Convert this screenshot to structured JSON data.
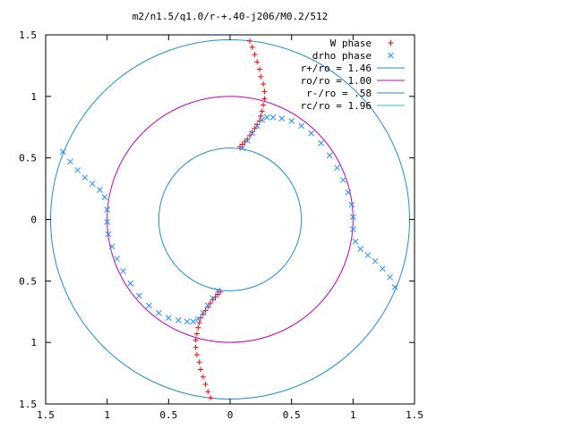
{
  "chart_data": {
    "type": "scatter",
    "title": "m2/n1.5/q1.0/r-+.40-j206/M0.2/512",
    "xlabel": "",
    "ylabel": "",
    "xlim": [
      -1.5,
      1.5
    ],
    "ylim": [
      -1.5,
      1.5
    ],
    "x_ticks": [
      "1.5",
      "1",
      "0.5",
      "0",
      "0.5",
      "1",
      "1.5"
    ],
    "y_ticks": [
      "1.5",
      "1",
      "0.5",
      "0",
      "0.5",
      "1",
      "1.5"
    ],
    "grid": false,
    "legend_position": "top-right",
    "colors": {
      "w_phase": "#ff0000",
      "drho_phase": "#1e90ff",
      "r_plus": "#1f8fcf",
      "ro": "#c000c0",
      "r_minus": "#1f8fcf",
      "rc": "#20c0e0"
    },
    "legend": [
      {
        "label": "W phase",
        "marker": "plus",
        "color": "#ff0000"
      },
      {
        "label": "drho phase",
        "marker": "cross",
        "color": "#1e90ff"
      },
      {
        "label": "r+/ro = 1.46",
        "marker": "line",
        "color": "#1f8fcf"
      },
      {
        "label": "ro/ro = 1.00",
        "marker": "line",
        "color": "#c000c0"
      },
      {
        "label": "r-/ro = .58",
        "marker": "line",
        "color": "#1f8fcf"
      },
      {
        "label": "rc/ro = 1.96",
        "marker": "line",
        "color": "#20c0e0"
      }
    ],
    "circles": [
      {
        "radius": 1.46,
        "color": "#1f8fcf"
      },
      {
        "radius": 1.0,
        "color": "#c000c0"
      },
      {
        "radius": 0.58,
        "color": "#1f8fcf"
      }
    ],
    "series": [
      {
        "name": "W phase",
        "marker": "plus",
        "color": "#ff0000",
        "x": [
          0.16,
          0.18,
          0.2,
          0.22,
          0.24,
          0.25,
          0.27,
          0.28,
          0.28,
          0.27,
          0.26,
          0.25,
          0.24,
          0.22,
          0.2,
          0.18,
          0.16,
          0.14,
          0.12,
          0.1,
          0.08,
          -0.16,
          -0.18,
          -0.2,
          -0.22,
          -0.24,
          -0.25,
          -0.27,
          -0.28,
          -0.28,
          -0.27,
          -0.26,
          -0.25,
          -0.24,
          -0.22,
          -0.2,
          -0.18,
          -0.16,
          -0.14,
          -0.12,
          -0.1,
          -0.08
        ],
        "y": [
          1.45,
          1.4,
          1.34,
          1.28,
          1.22,
          1.16,
          1.1,
          1.04,
          0.98,
          0.93,
          0.88,
          0.84,
          0.8,
          0.77,
          0.74,
          0.71,
          0.68,
          0.65,
          0.63,
          0.61,
          0.59,
          -1.45,
          -1.4,
          -1.34,
          -1.28,
          -1.22,
          -1.16,
          -1.1,
          -1.04,
          -0.98,
          -0.93,
          -0.88,
          -0.84,
          -0.8,
          -0.77,
          -0.74,
          -0.71,
          -0.68,
          -0.65,
          -0.63,
          -0.61,
          -0.59
        ]
      },
      {
        "name": "drho phase",
        "marker": "cross",
        "color": "#1e90ff",
        "x": [
          0.1,
          0.14,
          0.18,
          0.22,
          0.26,
          0.3,
          0.35,
          0.42,
          0.5,
          0.58,
          0.66,
          0.74,
          0.81,
          0.87,
          0.92,
          0.96,
          0.99,
          1.0,
          1.0,
          1.02,
          1.06,
          1.12,
          1.18,
          1.24,
          1.3,
          1.34,
          -0.1,
          -0.14,
          -0.18,
          -0.22,
          -0.26,
          -0.3,
          -0.35,
          -0.42,
          -0.5,
          -0.58,
          -0.66,
          -0.74,
          -0.81,
          -0.87,
          -0.92,
          -0.96,
          -0.99,
          -1.0,
          -1.0,
          -1.02,
          -1.06,
          -1.12,
          -1.18,
          -1.24,
          -1.3,
          -1.36
        ],
        "y": [
          0.58,
          0.64,
          0.7,
          0.76,
          0.81,
          0.83,
          0.83,
          0.82,
          0.8,
          0.76,
          0.7,
          0.62,
          0.52,
          0.42,
          0.32,
          0.22,
          0.12,
          0.02,
          -0.08,
          -0.18,
          -0.24,
          -0.29,
          -0.34,
          -0.4,
          -0.47,
          -0.55,
          -0.58,
          -0.64,
          -0.7,
          -0.76,
          -0.81,
          -0.83,
          -0.83,
          -0.82,
          -0.8,
          -0.76,
          -0.7,
          -0.62,
          -0.52,
          -0.42,
          -0.32,
          -0.22,
          -0.12,
          -0.02,
          0.08,
          0.18,
          0.24,
          0.29,
          0.34,
          0.4,
          0.47,
          0.55
        ]
      }
    ]
  }
}
